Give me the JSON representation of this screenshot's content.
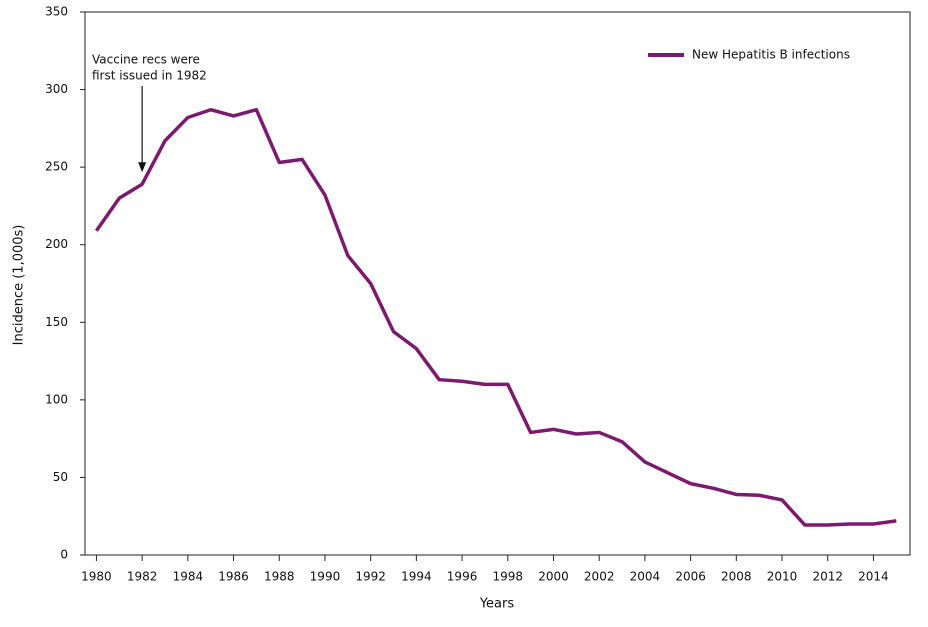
{
  "chart_data": {
    "type": "line",
    "x": [
      1980,
      1981,
      1982,
      1983,
      1984,
      1985,
      1986,
      1987,
      1988,
      1989,
      1990,
      1991,
      1992,
      1993,
      1994,
      1995,
      1996,
      1997,
      1998,
      1999,
      2000,
      2001,
      2002,
      2003,
      2004,
      2005,
      2006,
      2007,
      2008,
      2009,
      2010,
      2011,
      2012,
      2013,
      2014,
      2015
    ],
    "series": [
      {
        "name": "New Hepatitis B infections",
        "color": "#7b1a6e",
        "values": [
          209,
          230,
          239,
          267,
          282,
          287,
          283,
          287,
          253,
          255,
          232,
          193,
          175,
          144,
          133,
          113,
          112,
          110,
          110,
          79,
          81,
          78,
          79,
          73,
          60,
          53,
          46,
          43,
          39,
          38.5,
          35.5,
          19.3,
          19.3,
          20,
          20,
          22
        ]
      }
    ],
    "xlim": [
      1979.5,
      2015.6
    ],
    "xticks": [
      1980,
      1982,
      1984,
      1986,
      1988,
      1990,
      1992,
      1994,
      1996,
      1998,
      2000,
      2002,
      2004,
      2006,
      2008,
      2010,
      2012,
      2014
    ],
    "ylim": [
      0,
      350
    ],
    "yticks": [
      0,
      50,
      100,
      150,
      200,
      250,
      300,
      350
    ],
    "xlabel": "Years",
    "ylabel": "Incidence (1,000s)",
    "annotation": {
      "lines": [
        "Vaccine recs were",
        "first issued in 1982"
      ],
      "x": 1982
    },
    "legend": "top-right"
  }
}
